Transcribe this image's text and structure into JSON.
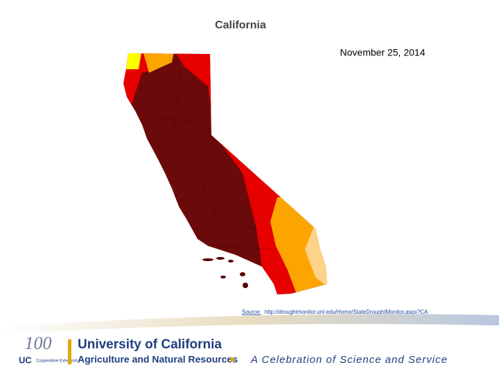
{
  "slide": {
    "title": "California",
    "date": "November 25, 2014",
    "source": {
      "label": "Source:",
      "url": "http://droughtmonitor.unl.edu/Home/StateDroughtMonitor.aspx?CA"
    },
    "footer": {
      "centennial": "100",
      "uc": "UC",
      "uc_unit": "Cooperative Extension",
      "university": "University of California",
      "division": "Agriculture and Natural Resources",
      "tagline": "A Celebration of Science and Service"
    }
  }
}
